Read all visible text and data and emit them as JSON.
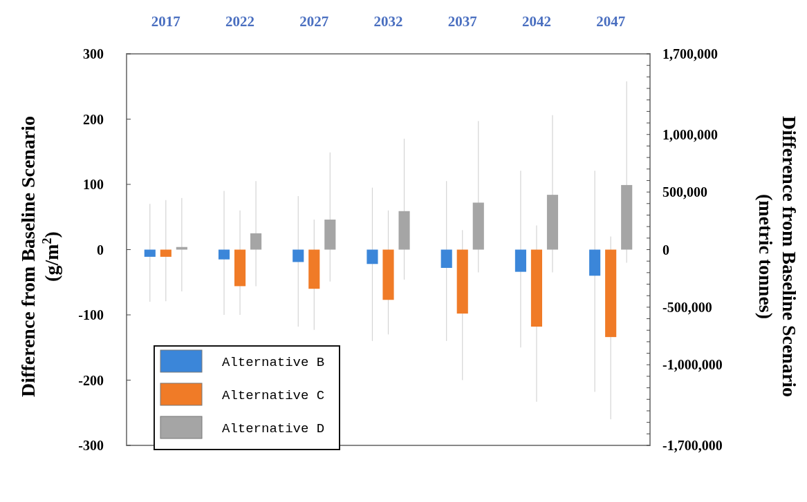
{
  "chart_data": {
    "type": "bar",
    "categories": [
      "2017",
      "2022",
      "2027",
      "2032",
      "2037",
      "2042",
      "2047"
    ],
    "series": [
      {
        "name": "Alternative B",
        "color": "#3b86d9",
        "values": [
          -11,
          -15,
          -19,
          -22,
          -28,
          -34,
          -40
        ],
        "errors": [
          [
            -80,
            70
          ],
          [
            -100,
            90
          ],
          [
            -118,
            82
          ],
          [
            -140,
            95
          ],
          [
            -140,
            105
          ],
          [
            -150,
            121
          ],
          [
            -218,
            121
          ]
        ]
      },
      {
        "name": "Alternative C",
        "color": "#f07b27",
        "values": [
          -11,
          -56,
          -60,
          -77,
          -98,
          -118,
          -134
        ],
        "errors": [
          [
            -79,
            76
          ],
          [
            -100,
            60
          ],
          [
            -123,
            46
          ],
          [
            -130,
            60
          ],
          [
            -200,
            30
          ],
          [
            -233,
            37
          ],
          [
            -260,
            20
          ]
        ]
      },
      {
        "name": "Alternative D",
        "color": "#a5a5a5",
        "values": [
          4,
          25,
          46,
          59,
          72,
          84,
          99
        ],
        "errors": [
          [
            -64,
            79
          ],
          [
            -56,
            105
          ],
          [
            -49,
            149
          ],
          [
            -46,
            170
          ],
          [
            -35,
            197
          ],
          [
            -35,
            206
          ],
          [
            -20,
            258
          ]
        ]
      }
    ],
    "ylabel": "Difference from Baseline Scenario (g/m$^{2}$)",
    "y2label": "Difference from Baseline Scenario (metric tonnes)",
    "ylim": [
      -300,
      300
    ],
    "yticks": [
      -300,
      -200,
      -100,
      0,
      100,
      200,
      300
    ],
    "y2lim": [
      -1700000,
      1700000
    ],
    "y2ticks": [
      {
        "value": -1700000,
        "label": "-1,700,000"
      },
      {
        "value": -1600000,
        "label": null
      },
      {
        "value": -1500000,
        "label": null
      },
      {
        "value": -1400000,
        "label": null
      },
      {
        "value": -1300000,
        "label": null
      },
      {
        "value": -1200000,
        "label": null
      },
      {
        "value": -1100000,
        "label": null
      },
      {
        "value": -1000000,
        "label": "-1,000,000"
      },
      {
        "value": -900000,
        "label": null
      },
      {
        "value": -800000,
        "label": null
      },
      {
        "value": -700000,
        "label": null
      },
      {
        "value": -600000,
        "label": null
      },
      {
        "value": -500000,
        "label": "-500,000"
      },
      {
        "value": -400000,
        "label": null
      },
      {
        "value": -300000,
        "label": null
      },
      {
        "value": -200000,
        "label": null
      },
      {
        "value": -100000,
        "label": null
      },
      {
        "value": 0,
        "label": "0"
      },
      {
        "value": 100000,
        "label": null
      },
      {
        "value": 200000,
        "label": null
      },
      {
        "value": 300000,
        "label": null
      },
      {
        "value": 400000,
        "label": null
      },
      {
        "value": 500000,
        "label": "500,000"
      },
      {
        "value": 600000,
        "label": null
      },
      {
        "value": 700000,
        "label": null
      },
      {
        "value": 800000,
        "label": null
      },
      {
        "value": 900000,
        "label": null
      },
      {
        "value": 1000000,
        "label": "1,000,000"
      },
      {
        "value": 1100000,
        "label": null
      },
      {
        "value": 1200000,
        "label": null
      },
      {
        "value": 1300000,
        "label": null
      },
      {
        "value": 1400000,
        "label": null
      },
      {
        "value": 1500000,
        "label": null
      },
      {
        "value": 1600000,
        "label": null
      },
      {
        "value": 1700000,
        "label": "1,700,000"
      }
    ],
    "legend": "bottom left",
    "grid": false
  }
}
